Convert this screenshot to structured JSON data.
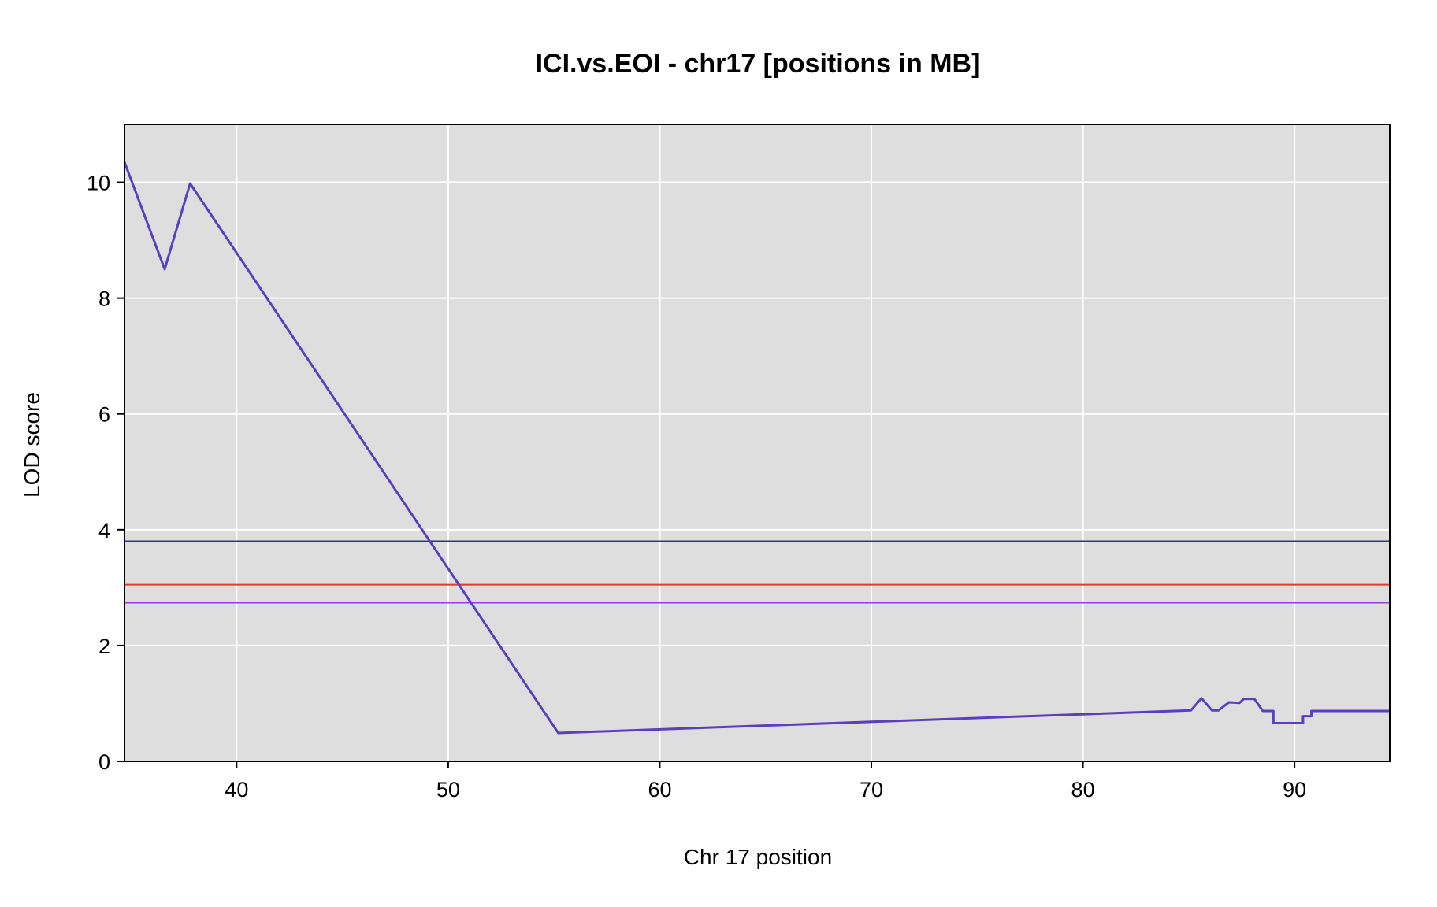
{
  "chart_data": {
    "type": "line",
    "title": "ICI.vs.EOI - chr17 [positions in MB]",
    "xlabel": "Chr 17 position",
    "ylabel": "LOD score",
    "xlim": [
      34.7,
      94.5
    ],
    "ylim": [
      0,
      11
    ],
    "xticks": [
      40,
      50,
      60,
      70,
      80,
      90
    ],
    "yticks": [
      0,
      2,
      4,
      6,
      8,
      10
    ],
    "grid": true,
    "panel_background": "#dedede",
    "grid_color": "#ffffff",
    "series": [
      {
        "color": "#5a3fbf",
        "x": [
          34.7,
          36.6,
          37.8,
          55.2,
          85.1,
          85.6,
          86.1,
          86.4,
          86.9,
          87.4,
          87.6,
          88.1,
          88.5,
          89.0,
          89.0,
          90.4,
          90.4,
          90.8,
          90.8,
          94.5
        ],
        "y": [
          10.35,
          8.5,
          9.98,
          0.49,
          0.88,
          1.09,
          0.88,
          0.88,
          1.02,
          1.01,
          1.08,
          1.08,
          0.87,
          0.87,
          0.66,
          0.66,
          0.78,
          0.78,
          0.87,
          0.87
        ]
      }
    ],
    "thresholds": [
      {
        "y": 3.8,
        "color": "#2c2cb4"
      },
      {
        "y": 3.05,
        "color": "#e53a2a"
      },
      {
        "y": 2.74,
        "color": "#9b3fcf"
      }
    ]
  }
}
